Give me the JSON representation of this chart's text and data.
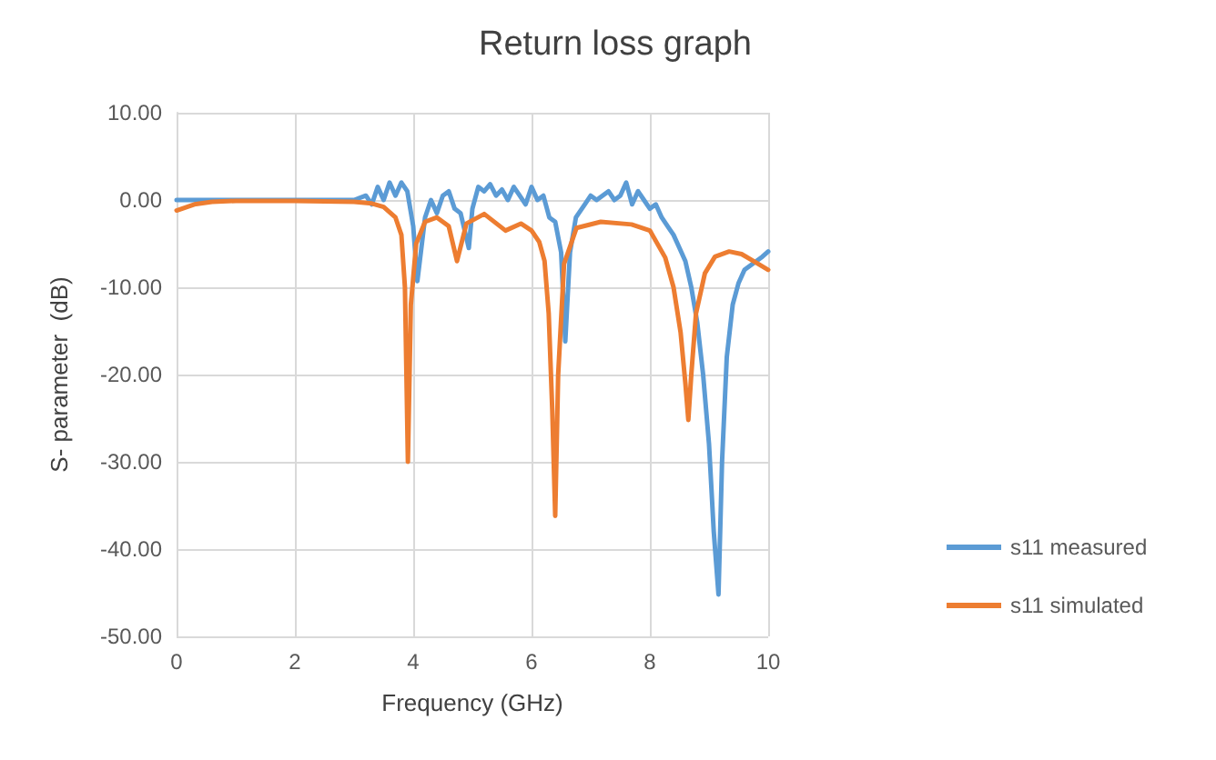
{
  "chart_data": {
    "type": "line",
    "title": "Return loss graph",
    "xlabel": "Frequency (GHz)",
    "ylabel": "S- parameter  (dB)",
    "xlim": [
      0,
      10
    ],
    "xticks": [
      0,
      2,
      4,
      6,
      8,
      10
    ],
    "ylim": [
      -50,
      10
    ],
    "yticks": [
      {
        "value": -50,
        "label": "-50.00"
      },
      {
        "value": -40,
        "label": "-40.00"
      },
      {
        "value": -30,
        "label": "-30.00"
      },
      {
        "value": -20,
        "label": "-20.00"
      },
      {
        "value": -10,
        "label": "-10.00"
      },
      {
        "value": 0,
        "label": "0.00"
      },
      {
        "value": 10,
        "label": "10.00"
      }
    ],
    "grid": true,
    "legend": "right",
    "marker": "none",
    "line_style": "solid",
    "series": [
      {
        "name": "s11 measured",
        "color": "#5b9bd5",
        "x": [
          0,
          0.5,
          1,
          2,
          3,
          3.2,
          3.3,
          3.4,
          3.5,
          3.6,
          3.7,
          3.8,
          3.9,
          4.0,
          4.07,
          4.2,
          4.3,
          4.4,
          4.5,
          4.6,
          4.7,
          4.8,
          4.94,
          5.0,
          5.1,
          5.2,
          5.3,
          5.4,
          5.5,
          5.6,
          5.7,
          5.8,
          5.9,
          6.0,
          6.1,
          6.2,
          6.3,
          6.4,
          6.5,
          6.57,
          6.65,
          6.75,
          6.9,
          7.0,
          7.1,
          7.2,
          7.3,
          7.4,
          7.5,
          7.6,
          7.7,
          7.8,
          7.9,
          8.0,
          8.1,
          8.2,
          8.3,
          8.4,
          8.5,
          8.6,
          8.7,
          8.8,
          8.9,
          9.0,
          9.08,
          9.16,
          9.22,
          9.3,
          9.4,
          9.5,
          9.6,
          9.7,
          9.8,
          9.9,
          10
        ],
        "values": [
          0,
          0,
          0,
          0,
          0,
          0.5,
          -0.5,
          1.5,
          0,
          2,
          0.5,
          2,
          1,
          -3,
          -9.3,
          -2,
          0,
          -1.5,
          0.5,
          1,
          -1,
          -1.5,
          -5.5,
          -1,
          1.5,
          1,
          1.8,
          0.5,
          1.2,
          0,
          1.5,
          0.5,
          -0.5,
          1.5,
          0,
          0.5,
          -2,
          -2.5,
          -6,
          -16.2,
          -6,
          -2,
          -0.5,
          0.5,
          0,
          0.5,
          1,
          0,
          0.5,
          2,
          -0.5,
          1,
          0,
          -1,
          -0.5,
          -2,
          -3,
          -4,
          -5.5,
          -7,
          -10,
          -14,
          -20,
          -28,
          -38,
          -45.2,
          -30,
          -18,
          -12,
          -9.5,
          -8,
          -7.5,
          -7,
          -6.5,
          -5.9
        ]
      },
      {
        "name": "s11 simulated",
        "color": "#ed7d31",
        "x": [
          0,
          0.3,
          0.6,
          1,
          2,
          3,
          3.3,
          3.5,
          3.7,
          3.8,
          3.86,
          3.91,
          3.96,
          4.05,
          4.2,
          4.4,
          4.6,
          4.74,
          4.9,
          5.2,
          5.56,
          5.82,
          6.0,
          6.13,
          6.22,
          6.29,
          6.35,
          6.4,
          6.45,
          6.55,
          6.76,
          7.17,
          7.69,
          8.0,
          8.26,
          8.4,
          8.52,
          8.6,
          8.65,
          8.7,
          8.78,
          8.93,
          9.1,
          9.34,
          9.55,
          9.75,
          10
        ],
        "values": [
          -1.2,
          -0.5,
          -0.2,
          -0.1,
          -0.1,
          -0.2,
          -0.4,
          -0.8,
          -2,
          -4,
          -10,
          -30,
          -12,
          -5,
          -2.5,
          -2,
          -3,
          -7,
          -2.7,
          -1.6,
          -3.5,
          -2.7,
          -3.5,
          -4.8,
          -7,
          -13,
          -24,
          -36.2,
          -20,
          -7.3,
          -3.2,
          -2.5,
          -2.8,
          -3.5,
          -6.6,
          -10,
          -15.2,
          -21,
          -25.2,
          -20,
          -13,
          -8.4,
          -6.5,
          -5.9,
          -6.2,
          -7,
          -8
        ]
      }
    ]
  }
}
